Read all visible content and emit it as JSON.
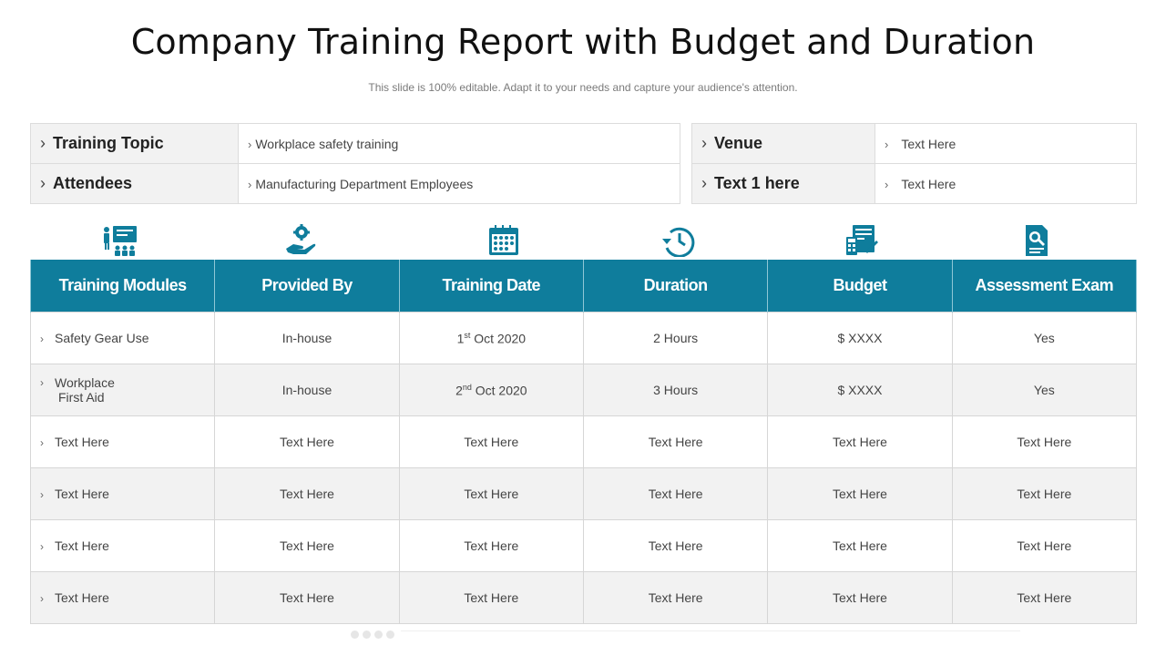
{
  "header": {
    "title": "Company Training Report with Budget and Duration",
    "subtitle": "This slide is 100% editable. Adapt it to your needs and capture your audience's attention."
  },
  "info_left": [
    {
      "label": "Training Topic",
      "value": "Workplace safety training"
    },
    {
      "label": "Attendees",
      "value": "Manufacturing Department Employees"
    }
  ],
  "info_right": [
    {
      "label": "Venue",
      "value": "Text  Here"
    },
    {
      "label": "Text 1 here",
      "value": "Text  Here"
    }
  ],
  "icons": [
    "presentation-audience-icon",
    "hand-gear-icon",
    "calendar-icon",
    "clock-arrow-icon",
    "calculator-chart-icon",
    "document-search-icon"
  ],
  "accent_color": "#0f7d9c",
  "table": {
    "headers": [
      "Training Modules",
      "Provided By",
      "Training Date",
      "Duration",
      "Budget",
      "Assessment Exam"
    ],
    "rows": [
      {
        "module": "Safety Gear Use",
        "provider": "In-house",
        "date_day": "1",
        "date_suffix": "st",
        "date_rest": " Oct 2020",
        "duration": "2 Hours",
        "budget": "$ XXXX",
        "exam": "Yes"
      },
      {
        "module_line1": "Workplace",
        "module_line2": "First Aid",
        "provider": "In-house",
        "date_day": "2",
        "date_suffix": "nd",
        "date_rest": " Oct 2020",
        "duration": "3 Hours",
        "budget": "$ XXXX",
        "exam": "Yes"
      },
      {
        "module": "Text Here",
        "provider": "Text Here",
        "date": "Text Here",
        "duration": "Text Here",
        "budget": "Text Here",
        "exam": "Text Here"
      },
      {
        "module": "Text Here",
        "provider": "Text Here",
        "date": "Text Here",
        "duration": "Text Here",
        "budget": "Text Here",
        "exam": "Text Here"
      },
      {
        "module": "Text Here",
        "provider": "Text Here",
        "date": "Text Here",
        "duration": "Text Here",
        "budget": "Text Here",
        "exam": "Text Here"
      },
      {
        "module": "Text Here",
        "provider": "Text Here",
        "date": "Text Here",
        "duration": "Text Here",
        "budget": "Text Here",
        "exam": "Text Here"
      }
    ]
  }
}
